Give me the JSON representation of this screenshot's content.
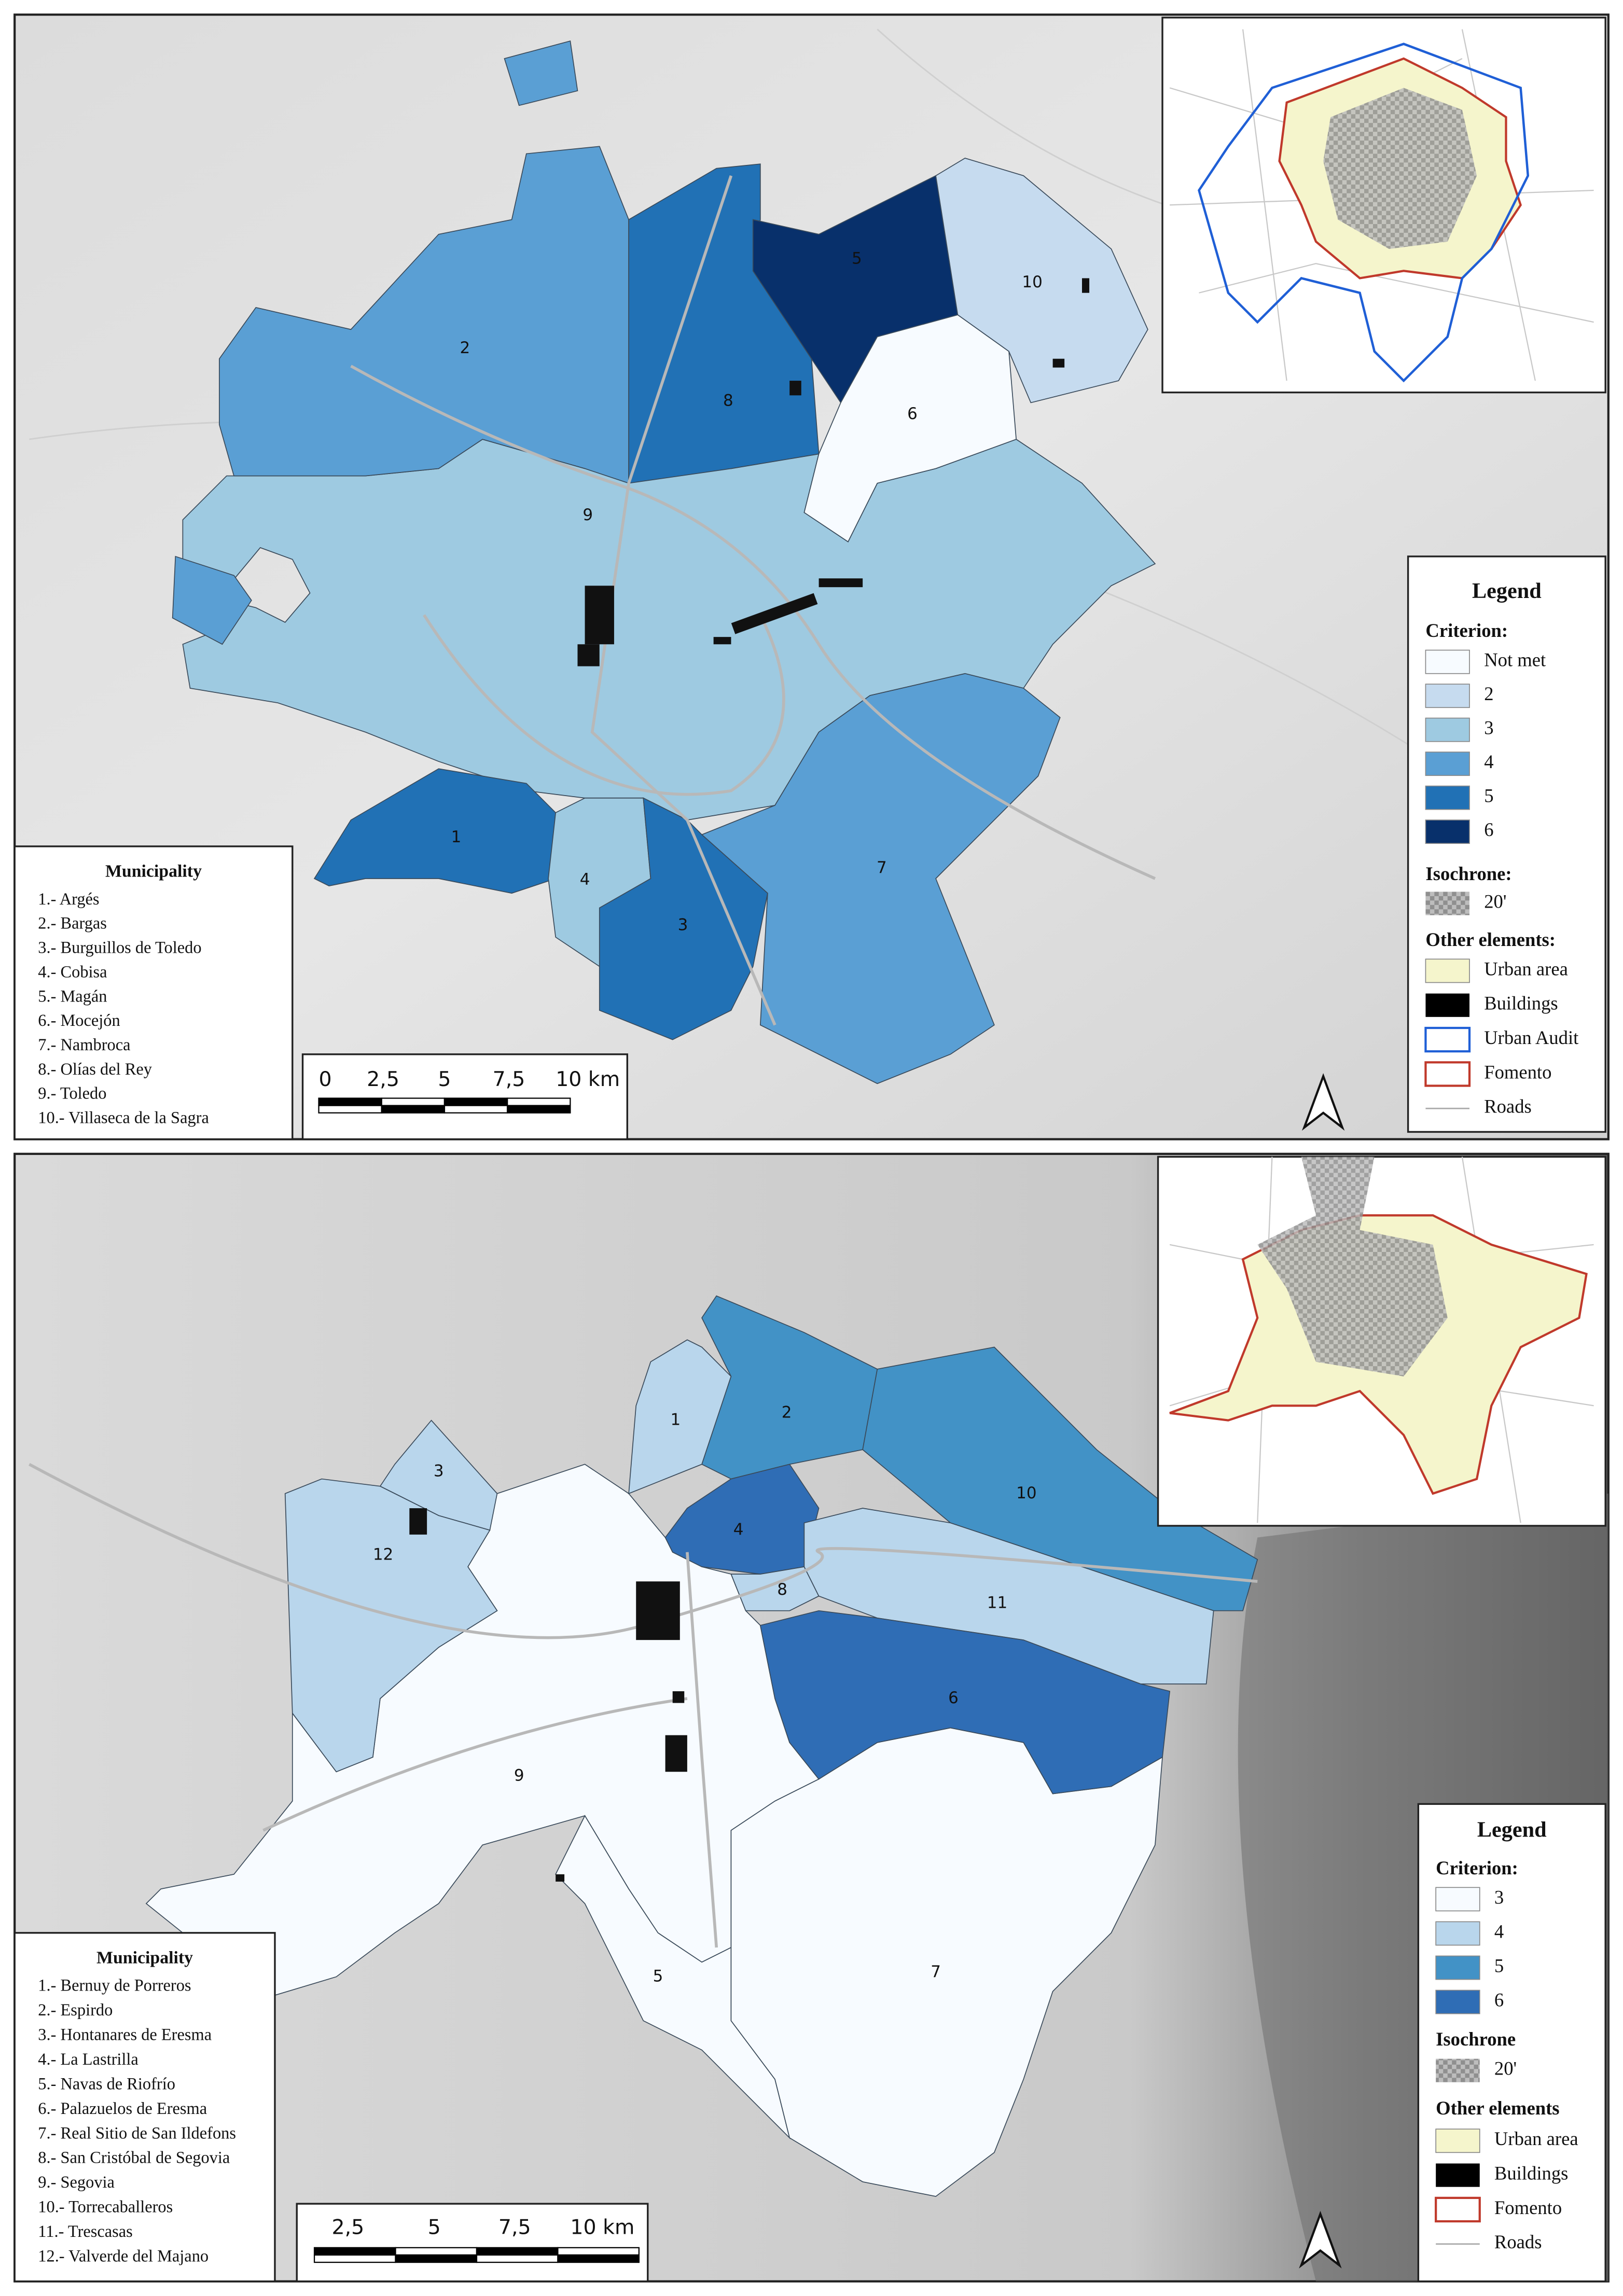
{
  "maps": [
    {
      "municipality_title": "Municipality",
      "municipalities": [
        "1.- Argés",
        "2.- Bargas",
        "3.- Burguillos de Toledo",
        "4.- Cobisa",
        "5.- Magán",
        "6.- Mocejón",
        "7.- Nambroca",
        "8.- Olías del Rey",
        "9.- Toledo",
        "10.- Villaseca de la Sagra"
      ],
      "labels": [
        "1",
        "2",
        "3",
        "4",
        "5",
        "6",
        "7",
        "8",
        "9",
        "10"
      ],
      "legend": {
        "title": "Legend",
        "criterion_title": "Criterion:",
        "criterion": [
          {
            "label": "Not met",
            "color": "#f7fbff"
          },
          {
            "label": "2",
            "color": "#c6dbef"
          },
          {
            "label": "3",
            "color": "#9ecae1"
          },
          {
            "label": "4",
            "color": "#5a9fd4"
          },
          {
            "label": "5",
            "color": "#2171b5"
          },
          {
            "label": "6",
            "color": "#08306b"
          }
        ],
        "isochrone_title": "Isochrone:",
        "isochrone": "20'",
        "other_title": "Other elements:",
        "other": [
          "Urban area",
          "Buildings",
          "Urban Audit",
          "Fomento",
          "Roads"
        ]
      },
      "scale": [
        "0",
        "2,5",
        "5",
        "7,5",
        "10 km"
      ]
    },
    {
      "municipality_title": "Municipality",
      "municipalities": [
        "1.- Bernuy de Porreros",
        "2.- Espirdo",
        "3.- Hontanares de Eresma",
        "4.- La Lastrilla",
        "5.- Navas de Riofrío",
        "6.- Palazuelos de Eresma",
        "7.- Real Sitio de San Ildefons",
        "8.- San Cristóbal de Segovia",
        "9.- Segovia",
        "10.- Torrecaballeros",
        "11.- Trescasas",
        "12.- Valverde del Majano"
      ],
      "labels": [
        "1",
        "2",
        "3",
        "4",
        "5",
        "6",
        "7",
        "8",
        "9",
        "10",
        "11",
        "12"
      ],
      "legend": {
        "title": "Legend",
        "criterion_title": "Criterion:",
        "criterion": [
          {
            "label": "3",
            "color": "#f7fbff"
          },
          {
            "label": "4",
            "color": "#b9d6ec"
          },
          {
            "label": "5",
            "color": "#4292c6"
          },
          {
            "label": "6",
            "color": "#2f6db5"
          }
        ],
        "isochrone_title": "Isochrone",
        "isochrone": "20'",
        "other_title": "Other elements",
        "other": [
          "Urban area",
          "Buildings",
          "Fomento",
          "Roads"
        ]
      },
      "scale": [
        "2,5",
        "5",
        "7,5",
        "10 km"
      ]
    }
  ]
}
